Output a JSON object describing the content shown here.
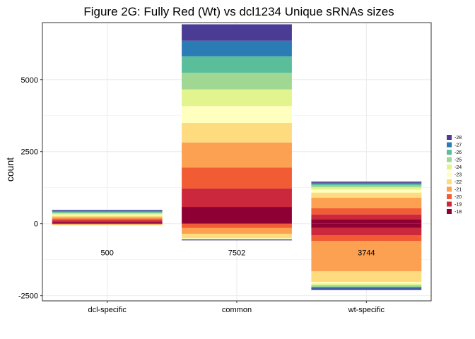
{
  "chart_data": {
    "type": "bar",
    "title": "Figure 2G: Fully Red (Wt) vs dcl1234 Unique sRNAs sizes",
    "xlabel": "",
    "ylabel": "count",
    "ylim": [
      -2680,
      6980
    ],
    "yticks": [
      -2500,
      0,
      2500,
      5000
    ],
    "grid": true,
    "legend_position": "right",
    "categories": [
      "dcl-specific",
      "common",
      "wt-specific"
    ],
    "bar_labels": [
      "500",
      "7502",
      "3744"
    ],
    "bar_label_y": -1000,
    "legend": [
      {
        "label": "-28",
        "color": "#4A3C94"
      },
      {
        "label": "-27",
        "color": "#2B7BB5"
      },
      {
        "label": "-26",
        "color": "#5BBE9B"
      },
      {
        "label": "-25",
        "color": "#A0D893"
      },
      {
        "label": "-24",
        "color": "#E2F48E"
      },
      {
        "label": "-23",
        "color": "#FFFFBE"
      },
      {
        "label": "-22",
        "color": "#FEDB7E"
      },
      {
        "label": "-21",
        "color": "#FCA052"
      },
      {
        "label": "-20",
        "color": "#F15C34"
      },
      {
        "label": "-19",
        "color": "#CC283D"
      },
      {
        "label": "-18",
        "color": "#8E0034"
      }
    ],
    "stacks": [
      {
        "category": "dcl-specific",
        "segments": [
          {
            "y0": -30,
            "y1": 0,
            "color": "#FCA052"
          },
          {
            "y0": -60,
            "y1": -30,
            "color": "#FEDB7E"
          },
          {
            "y0": 0,
            "y1": 60,
            "color": "#8E0034"
          },
          {
            "y0": 60,
            "y1": 120,
            "color": "#CC283D"
          },
          {
            "y0": 120,
            "y1": 175,
            "color": "#F15C34"
          },
          {
            "y0": 175,
            "y1": 230,
            "color": "#FCA052"
          },
          {
            "y0": 230,
            "y1": 275,
            "color": "#FEDB7E"
          },
          {
            "y0": 275,
            "y1": 315,
            "color": "#FFFFBE"
          },
          {
            "y0": 315,
            "y1": 350,
            "color": "#E2F48E"
          },
          {
            "y0": 350,
            "y1": 385,
            "color": "#A0D893"
          },
          {
            "y0": 385,
            "y1": 415,
            "color": "#5BBE9B"
          },
          {
            "y0": 415,
            "y1": 445,
            "color": "#2B7BB5"
          },
          {
            "y0": 445,
            "y1": 475,
            "color": "#4A3C94"
          }
        ]
      },
      {
        "category": "common",
        "segments": [
          {
            "y0": -580,
            "y1": -560,
            "color": "#4A3C94"
          },
          {
            "y0": -560,
            "y1": -540,
            "color": "#2B7BB5"
          },
          {
            "y0": -540,
            "y1": -500,
            "color": "#FFFFBE"
          },
          {
            "y0": -500,
            "y1": -350,
            "color": "#FEDB7E"
          },
          {
            "y0": -350,
            "y1": -150,
            "color": "#FCA052"
          },
          {
            "y0": -150,
            "y1": 0,
            "color": "#F15C34"
          },
          {
            "y0": 0,
            "y1": 580,
            "color": "#8E0034"
          },
          {
            "y0": 580,
            "y1": 1220,
            "color": "#CC283D"
          },
          {
            "y0": 1220,
            "y1": 1950,
            "color": "#F15C34"
          },
          {
            "y0": 1950,
            "y1": 2820,
            "color": "#FCA052"
          },
          {
            "y0": 2820,
            "y1": 3500,
            "color": "#FEDB7E"
          },
          {
            "y0": 3500,
            "y1": 4080,
            "color": "#FFFFBE"
          },
          {
            "y0": 4080,
            "y1": 4660,
            "color": "#E2F48E"
          },
          {
            "y0": 4660,
            "y1": 5240,
            "color": "#A0D893"
          },
          {
            "y0": 5240,
            "y1": 5810,
            "color": "#5BBE9B"
          },
          {
            "y0": 5810,
            "y1": 6350,
            "color": "#2B7BB5"
          },
          {
            "y0": 6350,
            "y1": 6920,
            "color": "#4A3C94"
          }
        ]
      },
      {
        "category": "wt-specific",
        "segments": [
          {
            "y0": -2300,
            "y1": -2250,
            "color": "#4A3C94"
          },
          {
            "y0": -2250,
            "y1": -2200,
            "color": "#2B7BB5"
          },
          {
            "y0": -2200,
            "y1": -2140,
            "color": "#A0D893"
          },
          {
            "y0": -2140,
            "y1": -2080,
            "color": "#E2F48E"
          },
          {
            "y0": -2080,
            "y1": -2020,
            "color": "#FFFFBE"
          },
          {
            "y0": -2020,
            "y1": -1650,
            "color": "#FEDB7E"
          },
          {
            "y0": -1650,
            "y1": -600,
            "color": "#FCA052"
          },
          {
            "y0": -600,
            "y1": -400,
            "color": "#F15C34"
          },
          {
            "y0": -400,
            "y1": -150,
            "color": "#CC283D"
          },
          {
            "y0": -150,
            "y1": 0,
            "color": "#8E0034"
          },
          {
            "y0": 0,
            "y1": 150,
            "color": "#8E0034"
          },
          {
            "y0": 150,
            "y1": 320,
            "color": "#CC283D"
          },
          {
            "y0": 320,
            "y1": 540,
            "color": "#F15C34"
          },
          {
            "y0": 540,
            "y1": 900,
            "color": "#FCA052"
          },
          {
            "y0": 900,
            "y1": 1080,
            "color": "#FEDB7E"
          },
          {
            "y0": 1080,
            "y1": 1180,
            "color": "#FFFFBE"
          },
          {
            "y0": 1180,
            "y1": 1260,
            "color": "#E2F48E"
          },
          {
            "y0": 1260,
            "y1": 1330,
            "color": "#A0D893"
          },
          {
            "y0": 1330,
            "y1": 1380,
            "color": "#5BBE9B"
          },
          {
            "y0": 1380,
            "y1": 1420,
            "color": "#2B7BB5"
          },
          {
            "y0": 1420,
            "y1": 1460,
            "color": "#4A3C94"
          }
        ]
      }
    ],
    "colors": {
      "grid": "#EBEBEB",
      "frame": "#333333",
      "background": "#FFFFFF"
    }
  }
}
